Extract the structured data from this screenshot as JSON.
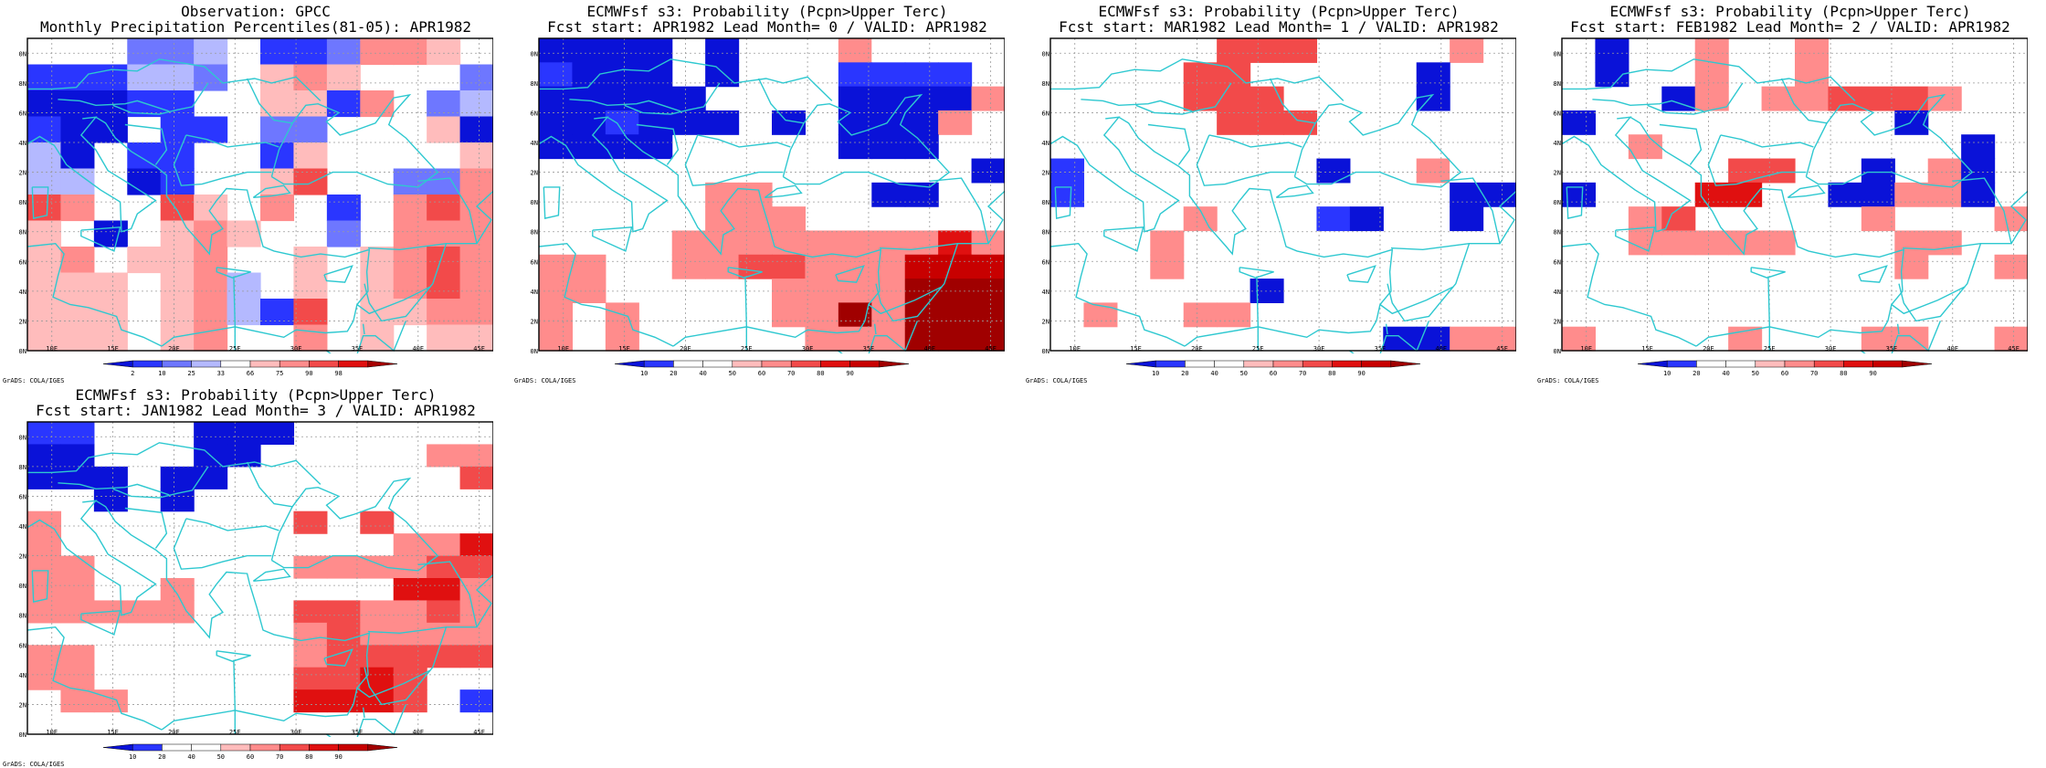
{
  "axes": {
    "lon_ticks": [
      "10E",
      "15E",
      "20E",
      "25E",
      "30E",
      "35E",
      "40E",
      "45E"
    ],
    "lat_ticks": [
      "30N",
      "32N",
      "34N",
      "36N",
      "38N",
      "40N",
      "42N",
      "44N",
      "46N",
      "48N",
      "50N"
    ]
  },
  "panels": [
    {
      "id": "obs",
      "title_line1": "Observation: GPCC",
      "title_line2": "Monthly Precipitation Percentiles(81-05): APR1982",
      "colorbar_labels": [
        "2",
        "10",
        "25",
        "33",
        "66",
        "75",
        "90",
        "98"
      ],
      "colorbar_colors": [
        "#0a12d8",
        "#2a36ff",
        "#6e77ff",
        "#b4b9ff",
        "#ffffff",
        "#ffbcbc",
        "#ff8c8c",
        "#f24a4a",
        "#e01010",
        "#a60000"
      ],
      "grid": [
        "00044302246650",
        "22233405650004",
        "11122005526043",
        "21102204400051",
        "31022002500005",
        "33012005700446",
        "76007506020676",
        "50105650040666",
        "56055600505676",
        "55505630505676",
        "55505632705566",
        "55505600605055"
      ]
    },
    {
      "id": "lead0",
      "title_line1": "ECMWFsf s3: Probability (Pcpn>Upper Terc)",
      "title_line2": "Fcst start: APR1982  Lead Month= 0 / VALID: APR1982",
      "colorbar_labels": [
        "10",
        "20",
        "40",
        "50",
        "60",
        "70",
        "80",
        "90"
      ],
      "colorbar_colors": [
        "#0a12d8",
        "#2a36ff",
        "#ffffff",
        "#ffffff",
        "#ffbcbc",
        "#ff8c8c",
        "#f24a4a",
        "#e01010",
        "#c80000",
        "#a00000"
      ],
      "grid": [
        "11110100054440",
        "21110100022220",
        "11111000011115",
        "11211101011150",
        "11110000011100",
        "00000000000001",
        "00000550001100",
        "00000555000000",
        "00005555555575",
        "55005566555888",
        "55000005555999",
        "50500005595999",
        "50500000555999"
      ]
    },
    {
      "id": "lead1",
      "title_line1": "ECMWFsf s3: Probability (Pcpn>Upper Terc)",
      "title_line2": "Fcst start: MAR1982  Lead Month= 1 / VALID: APR1982",
      "colorbar_labels": [
        "10",
        "20",
        "40",
        "50",
        "60",
        "70",
        "80",
        "90"
      ],
      "colorbar_colors": [
        "#0a12d8",
        "#2a36ff",
        "#ffffff",
        "#ffffff",
        "#ffbcbc",
        "#ff8c8c",
        "#f24a4a",
        "#e01010",
        "#c80000",
        "#a00000"
      ],
      "grid": [
        "00000666000050",
        "00006600000100",
        "00006660000100",
        "00000666004000",
        "00000000000000",
        "20000000100544",
        "20000000000011",
        "00005000210010",
        "00050000000000",
        "00050000000000",
        "00000010000000",
        "05005500000000",
        "00000000001155"
      ]
    },
    {
      "id": "lead2",
      "title_line1": "ECMWFsf s3: Probability (Pcpn>Upper Terc)",
      "title_line2": "Fcst start: FEB1982  Lead Month= 2 / VALID: APR1982",
      "colorbar_labels": [
        "10",
        "20",
        "40",
        "50",
        "60",
        "70",
        "80",
        "90"
      ],
      "colorbar_colors": [
        "#0a12d8",
        "#2a36ff",
        "#ffffff",
        "#ffffff",
        "#ffbcbc",
        "#ff8c8c",
        "#f24a4a",
        "#e01010",
        "#c80000",
        "#a00000"
      ],
      "grid": [
        "01005005004000",
        "01005005004000",
        "00015055666500",
        "10000000001000",
        "00500000000010",
        "00000660010510",
        "10007700115510",
        "00560000050005",
        "00555550005500",
        "00000000005005",
        "00000000000000",
        "00000000000000",
        "50000500055005"
      ]
    },
    {
      "id": "lead3",
      "title_line1": "ECMWFsf s3: Probability (Pcpn>Upper Terc)",
      "title_line2": "Fcst start: JAN1982  Lead Month= 3 / VALID: APR1982",
      "colorbar_labels": [
        "10",
        "20",
        "40",
        "50",
        "60",
        "70",
        "80",
        "90"
      ],
      "colorbar_colors": [
        "#0a12d8",
        "#2a36ff",
        "#ffffff",
        "#ffffff",
        "#ffbcbc",
        "#ff8c8c",
        "#f24a4a",
        "#e01010",
        "#c80000",
        "#a00000"
      ],
      "grid": [
        "22000111000000",
        "11000110000055",
        "11101100000006",
        "00101000000000",
        "50000000606000",
        "50000000000557",
        "55000000555566",
        "55005000000775",
        "55555000665565",
        "00000000565555",
        "55000000566666",
        "55000000667600",
        "05500000777602",
        "00000000000000"
      ]
    }
  ],
  "label_grads": "GrADS: COLA/IGES"
}
